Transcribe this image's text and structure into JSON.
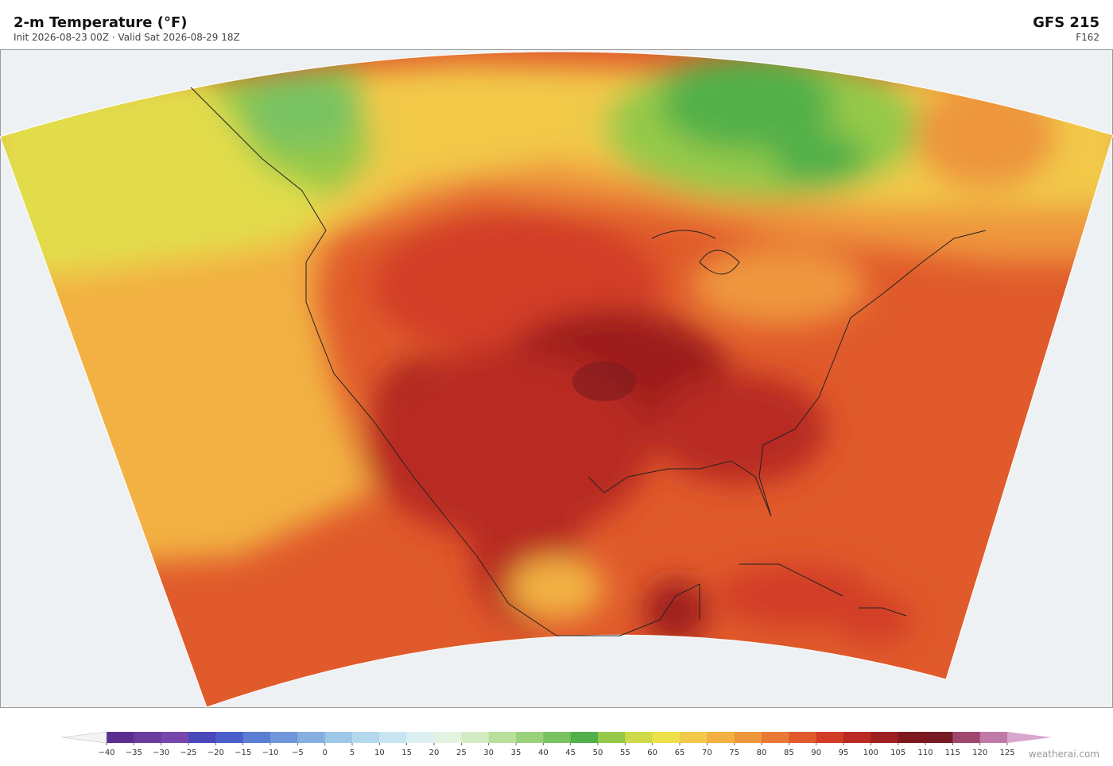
{
  "header": {
    "title": "2-m Temperature  (°F)",
    "subtitle": "Init 2026-08-23 00Z  ·  Valid Sat 2026-08-29 18Z",
    "model": "GFS  215",
    "forecast_hour": "F162"
  },
  "colorbar": {
    "lim": [
      -40,
      125
    ],
    "ticks": [
      {
        "value": -40,
        "label": "−40"
      },
      {
        "value": -35,
        "label": "−35"
      },
      {
        "value": -30,
        "label": "−30"
      },
      {
        "value": -25,
        "label": "−25"
      },
      {
        "value": -20,
        "label": "−20"
      },
      {
        "value": -15,
        "label": "−15"
      },
      {
        "value": -10,
        "label": "−10"
      },
      {
        "value": -5,
        "label": "−5"
      },
      0,
      5,
      10,
      15,
      20,
      25,
      30,
      35,
      40,
      45,
      50,
      55,
      60,
      65,
      70,
      75,
      80,
      85,
      90,
      95,
      100,
      105,
      110,
      115,
      120,
      125
    ],
    "colors": [
      "#5a2d8f",
      "#6a3a9e",
      "#7646ad",
      "#4a48b8",
      "#4a5dc9",
      "#5b7ed3",
      "#6f97da",
      "#86b0e0",
      "#9ec8e8",
      "#b4d9ef",
      "#c8e6f2",
      "#dcf0f1",
      "#e4f3e0",
      "#d4ecc4",
      "#b9e09a",
      "#9ad27b",
      "#78c262",
      "#52b04a",
      "#95c94a",
      "#cfd94a",
      "#ede14a",
      "#f2c94a",
      "#f2b142",
      "#ee963e",
      "#e97a36",
      "#e05a2b",
      "#d23c26",
      "#b82a22",
      "#9d1f1f",
      "#7e1a1e",
      "#761a24",
      "#a0476f",
      "#c07aa8"
    ],
    "extend_colors": [
      "#f4f4f4",
      "#d9a6cf"
    ]
  },
  "watermark": "weatherai.com"
}
